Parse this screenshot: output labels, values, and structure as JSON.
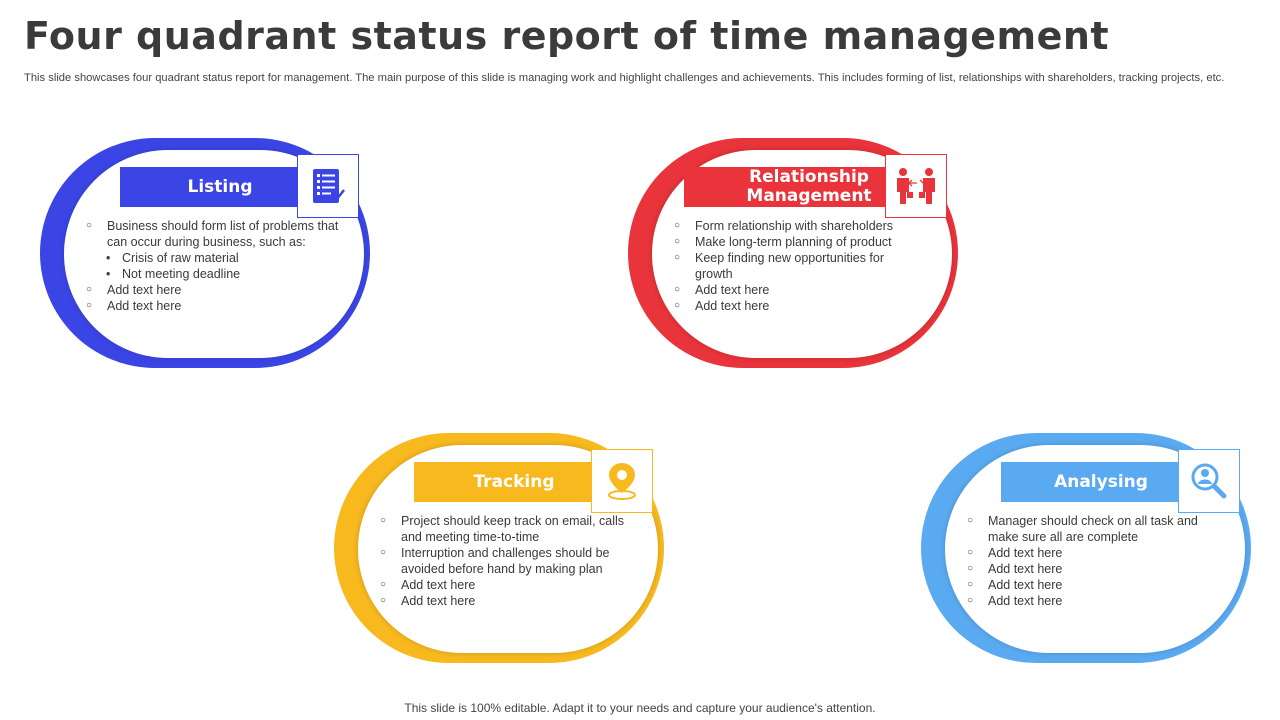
{
  "page": {
    "title": "Four quadrant status report of time management",
    "subtitle": "This slide showcases four quadrant status report for management. The main purpose of this slide is managing work and highlight challenges and achievements. This includes forming of list, relationships with shareholders, tracking projects, etc.",
    "footer": "This slide is 100% editable. Adapt it to your needs and capture your audience's attention."
  },
  "quadrants": [
    {
      "label": "Listing",
      "color": "#3b45e6",
      "icon": "checklist-icon",
      "items": [
        {
          "text": "Business should form list of problems that can occur during business, such as:",
          "level": 1
        },
        {
          "text": "Crisis of raw material",
          "level": 2
        },
        {
          "text": "Not meeting deadline",
          "level": 2
        },
        {
          "text": "Add text here",
          "level": 1
        },
        {
          "text": "Add text here",
          "level": 1
        }
      ]
    },
    {
      "label": "Relationship Management",
      "color": "#e8343a",
      "icon": "people-exchange-icon",
      "items": [
        {
          "text": "Form relationship with shareholders",
          "level": 1
        },
        {
          "text": "Make long-term planning of product",
          "level": 1
        },
        {
          "text": "Keep finding new opportunities for growth",
          "level": 1
        },
        {
          "text": "Add text here",
          "level": 1
        },
        {
          "text": "Add text here",
          "level": 1
        }
      ]
    },
    {
      "label": "Tracking",
      "color": "#f8b91f",
      "icon": "location-pin-icon",
      "items": [
        {
          "text": "Project should keep track on email, calls and meeting time-to-time",
          "level": 1
        },
        {
          "text": "Interruption and challenges should be avoided before hand by making plan",
          "level": 1
        },
        {
          "text": "Add text here",
          "level": 1
        },
        {
          "text": "Add text here",
          "level": 1
        }
      ]
    },
    {
      "label": "Analysing",
      "color": "#5aaaf2",
      "icon": "search-user-icon",
      "items": [
        {
          "text": "Manager should check on all task and make sure all are complete",
          "level": 1
        },
        {
          "text": "Add text here",
          "level": 1
        },
        {
          "text": "Add text here",
          "level": 1
        },
        {
          "text": "Add text here",
          "level": 1
        },
        {
          "text": "Add text here",
          "level": 1
        }
      ]
    }
  ]
}
